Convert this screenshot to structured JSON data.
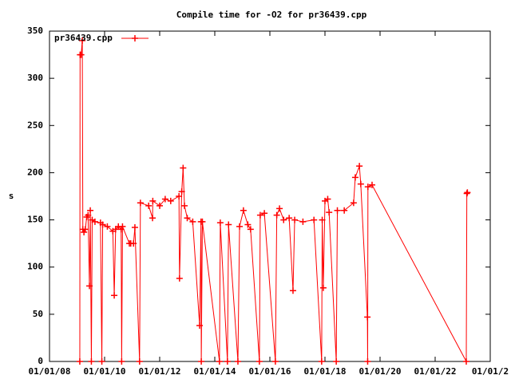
{
  "chart_data": {
    "type": "line",
    "title": "Compile time for -O2 for pr36439.cpp",
    "y_label": "s",
    "x": [
      2009.1,
      2009.11,
      2009.15,
      2009.19,
      2009.21,
      2009.25,
      2009.3,
      2009.35,
      2009.4,
      2009.45,
      2009.48,
      2009.52,
      2009.55,
      2009.65,
      2009.85,
      2009.9,
      2009.93,
      2010.1,
      2010.3,
      2010.35,
      2010.4,
      2010.5,
      2010.6,
      2010.62,
      2010.65,
      2010.9,
      2010.95,
      2011.05,
      2011.1,
      2011.27,
      2011.3,
      2011.6,
      2011.74,
      2011.75,
      2012.0,
      2012.2,
      2012.4,
      2012.7,
      2012.72,
      2012.8,
      2012.85,
      2012.9,
      2013.0,
      2013.2,
      2013.45,
      2013.5,
      2013.51,
      2013.55,
      2014.17,
      2014.2,
      2014.46,
      2014.5,
      2014.84,
      2014.9,
      2015.04,
      2015.2,
      2015.3,
      2015.62,
      2015.65,
      2015.8,
      2016.2,
      2016.25,
      2016.35,
      2016.5,
      2016.7,
      2016.84,
      2016.9,
      2017.2,
      2017.6,
      2017.88,
      2017.9,
      2017.94,
      2018.0,
      2018.1,
      2018.15,
      2018.41,
      2018.45,
      2018.7,
      2019.04,
      2019.1,
      2019.25,
      2019.3,
      2019.54,
      2019.55,
      2019.56,
      2019.71,
      2023.13,
      2023.15,
      2023.17
    ],
    "series": [
      {
        "name": "pr36439.cpp",
        "color": "#ff0000",
        "values": [
          0,
          325,
          325,
          340,
          140,
          137,
          140,
          153,
          155,
          80,
          160,
          0,
          150,
          148,
          147,
          0,
          145,
          143,
          138,
          70,
          140,
          143,
          140,
          0,
          143,
          125,
          125,
          125,
          142,
          0,
          168,
          165,
          152,
          170,
          165,
          172,
          170,
          175,
          88,
          180,
          205,
          165,
          152,
          148,
          38,
          148,
          0,
          148,
          0,
          147,
          0,
          145,
          0,
          143,
          160,
          145,
          140,
          0,
          155,
          157,
          0,
          155,
          162,
          150,
          152,
          75,
          150,
          148,
          150,
          0,
          150,
          78,
          170,
          172,
          158,
          0,
          160,
          160,
          168,
          195,
          207,
          188,
          47,
          0,
          185,
          187,
          0,
          178,
          179
        ]
      }
    ],
    "xlim": [
      2008,
      2024
    ],
    "ylim": [
      0,
      350
    ],
    "xticks": [
      {
        "value": 2008,
        "label": "01/01/08"
      },
      {
        "value": 2010,
        "label": "01/01/10"
      },
      {
        "value": 2012,
        "label": "01/01/12"
      },
      {
        "value": 2014,
        "label": "01/01/14"
      },
      {
        "value": 2016,
        "label": "01/01/16"
      },
      {
        "value": 2018,
        "label": "01/01/18"
      },
      {
        "value": 2020,
        "label": "01/01/20"
      },
      {
        "value": 2022,
        "label": "01/01/22"
      },
      {
        "value": 2024,
        "label": "01/01/2"
      }
    ],
    "yticks": [
      0,
      50,
      100,
      150,
      200,
      250,
      300,
      350
    ],
    "grid": false,
    "legend": "top-left"
  }
}
